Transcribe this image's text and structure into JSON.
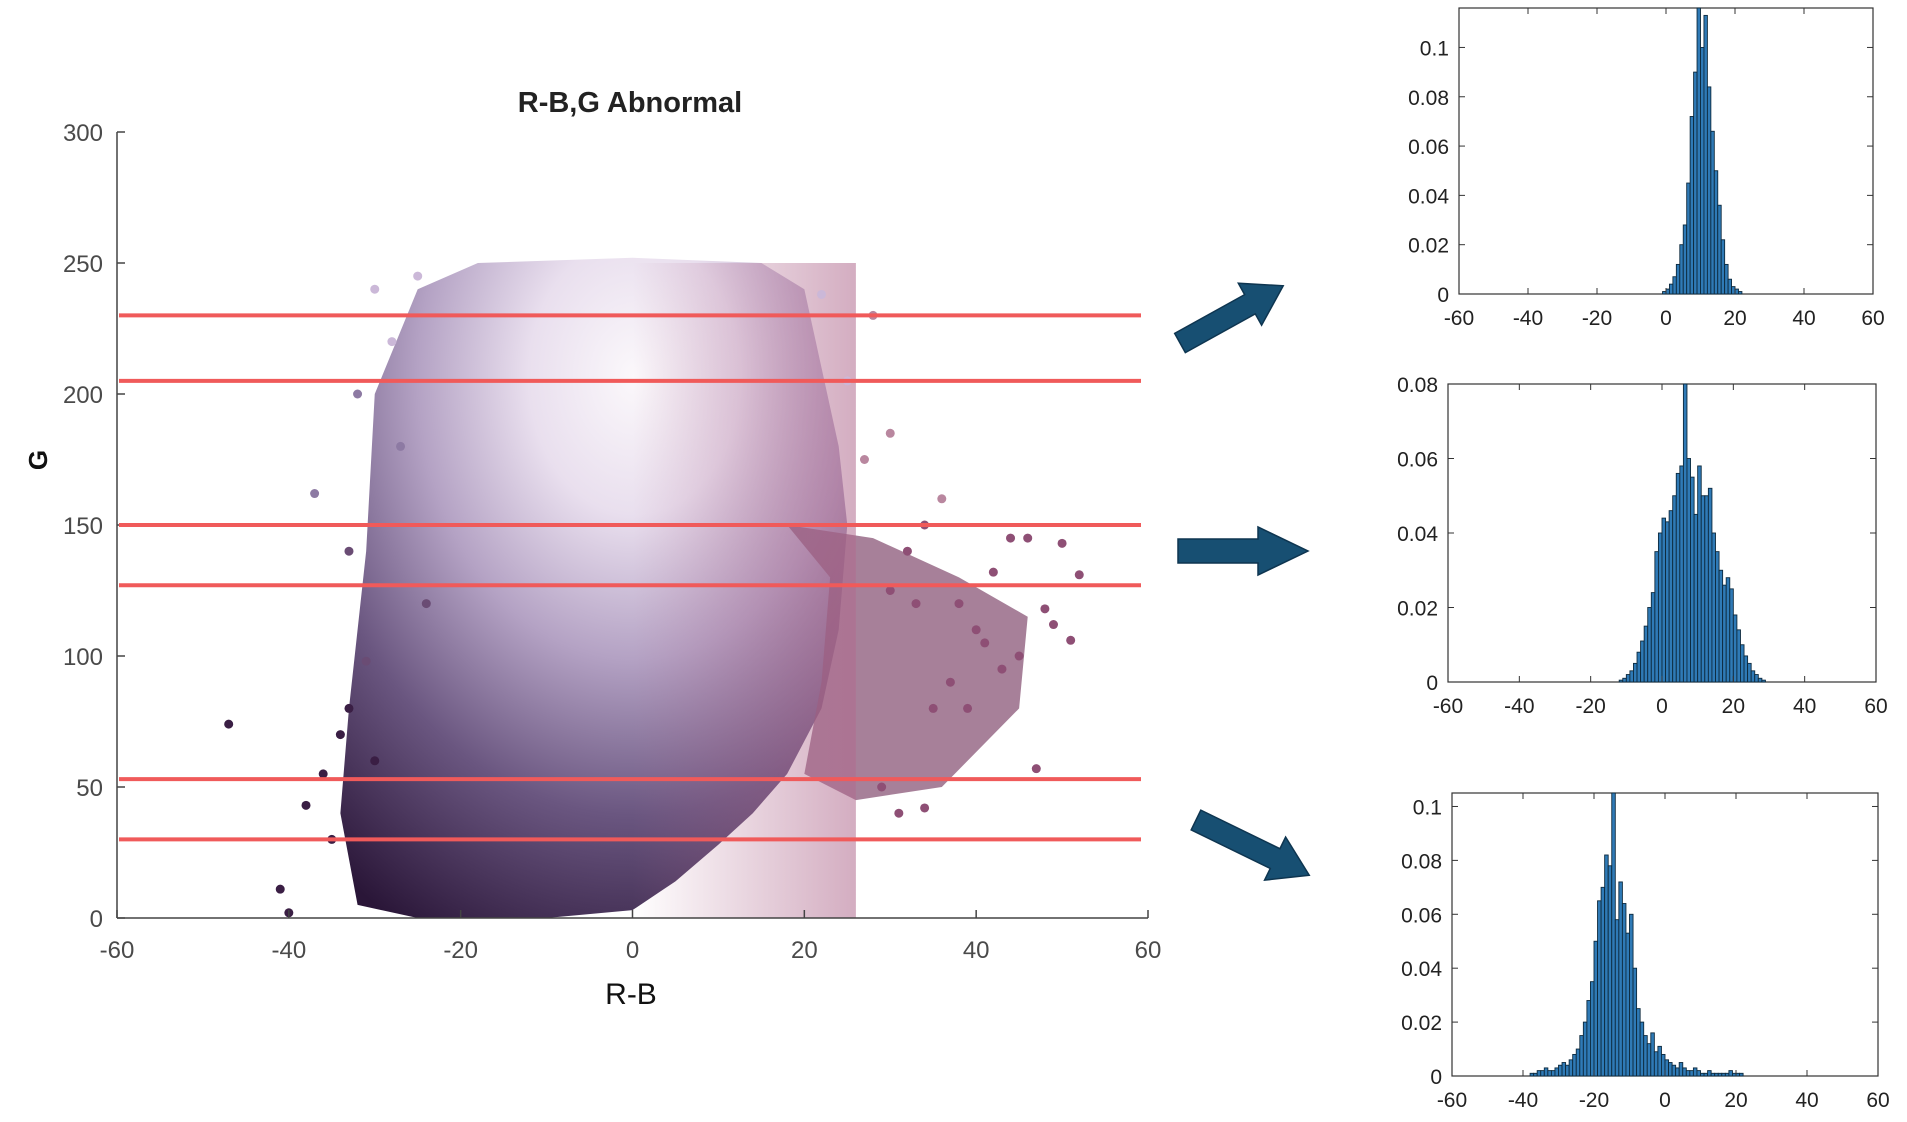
{
  "colors": {
    "band_line": "#f05a5a",
    "arrow": "#174f72",
    "histogram_bar": "#2f7ab6",
    "histogram_edge": "#0d2a3e"
  },
  "chart_data": [
    {
      "type": "scatter",
      "title": "R-B,G Abnormal",
      "xlabel": "R-B",
      "ylabel": "G",
      "xlim": [
        -60,
        60
      ],
      "ylim": [
        0,
        300
      ],
      "xticks": [
        "-60",
        "-40",
        "-20",
        "0",
        "20",
        "40",
        "60"
      ],
      "yticks": [
        "0",
        "50",
        "100",
        "150",
        "200",
        "250",
        "300"
      ],
      "bands": [
        {
          "G_low": 205,
          "G_high": 230
        },
        {
          "G_low": 127,
          "G_high": 150
        },
        {
          "G_low": 30,
          "G_high": 53
        }
      ],
      "points": [
        [
          -47,
          74
        ],
        [
          -41,
          11
        ],
        [
          -40,
          2
        ],
        [
          -38,
          43
        ],
        [
          -37,
          162
        ],
        [
          -36,
          55
        ],
        [
          -35,
          30
        ],
        [
          -34,
          70
        ],
        [
          -33,
          80
        ],
        [
          -33,
          140
        ],
        [
          -32,
          200
        ],
        [
          -31,
          98
        ],
        [
          -30,
          240
        ],
        [
          -30,
          60
        ],
        [
          -28,
          220
        ],
        [
          -27,
          180
        ],
        [
          -25,
          245
        ],
        [
          -24,
          120
        ],
        [
          30,
          125
        ],
        [
          32,
          140
        ],
        [
          34,
          150
        ],
        [
          36,
          160
        ],
        [
          38,
          120
        ],
        [
          40,
          110
        ],
        [
          42,
          132
        ],
        [
          43,
          95
        ],
        [
          44,
          145
        ],
        [
          45,
          100
        ],
        [
          46,
          145
        ],
        [
          47,
          57
        ],
        [
          48,
          118
        ],
        [
          49,
          112
        ],
        [
          50,
          143
        ],
        [
          51,
          106
        ],
        [
          52,
          131
        ],
        [
          25,
          205
        ],
        [
          27,
          175
        ],
        [
          28,
          230
        ],
        [
          30,
          185
        ],
        [
          22,
          238
        ],
        [
          33,
          120
        ],
        [
          35,
          80
        ],
        [
          37,
          90
        ],
        [
          39,
          80
        ],
        [
          41,
          105
        ],
        [
          31,
          40
        ],
        [
          34,
          42
        ],
        [
          29,
          50
        ]
      ]
    },
    {
      "type": "bar",
      "band": "G 205-230",
      "xlim": [
        -60,
        60
      ],
      "ylim": [
        0,
        0.116
      ],
      "xticks": [
        "-60",
        "-40",
        "-20",
        "0",
        "20",
        "40",
        "60"
      ],
      "yticks": [
        "0",
        "0.02",
        "0.04",
        "0.06",
        "0.08",
        "0.1"
      ],
      "bin_start": -1,
      "bin_width": 1,
      "values": [
        0.001,
        0.002,
        0.004,
        0.007,
        0.012,
        0.02,
        0.028,
        0.045,
        0.072,
        0.09,
        0.116,
        0.1,
        0.113,
        0.084,
        0.066,
        0.05,
        0.036,
        0.022,
        0.012,
        0.006,
        0.003,
        0.002,
        0.001
      ]
    },
    {
      "type": "bar",
      "band": "G 127-150",
      "xlim": [
        -60,
        60
      ],
      "ylim": [
        0,
        0.08
      ],
      "xticks": [
        "-60",
        "-40",
        "-20",
        "0",
        "20",
        "40",
        "60"
      ],
      "yticks": [
        "0",
        "0.02",
        "0.04",
        "0.06",
        "0.08"
      ],
      "bin_start": -12,
      "bin_width": 1,
      "values": [
        0.0005,
        0.001,
        0.002,
        0.003,
        0.005,
        0.008,
        0.011,
        0.015,
        0.02,
        0.024,
        0.035,
        0.04,
        0.044,
        0.043,
        0.046,
        0.05,
        0.056,
        0.058,
        0.08,
        0.06,
        0.055,
        0.045,
        0.058,
        0.05,
        0.05,
        0.052,
        0.04,
        0.035,
        0.03,
        0.026,
        0.028,
        0.025,
        0.018,
        0.014,
        0.01,
        0.007,
        0.005,
        0.003,
        0.002,
        0.001,
        0.0005
      ]
    },
    {
      "type": "bar",
      "band": "G 30-53",
      "xlim": [
        -60,
        60
      ],
      "ylim": [
        0,
        0.105
      ],
      "xticks": [
        "-60",
        "-40",
        "-20",
        "0",
        "20",
        "40",
        "60"
      ],
      "yticks": [
        "0",
        "0.02",
        "0.04",
        "0.06",
        "0.08",
        "0.1"
      ],
      "bin_start": -38,
      "bin_width": 1,
      "values": [
        0.001,
        0.001,
        0.002,
        0.002,
        0.003,
        0.002,
        0.002,
        0.003,
        0.004,
        0.005,
        0.004,
        0.006,
        0.008,
        0.01,
        0.015,
        0.02,
        0.028,
        0.035,
        0.05,
        0.065,
        0.07,
        0.082,
        0.078,
        0.105,
        0.058,
        0.072,
        0.064,
        0.053,
        0.06,
        0.04,
        0.025,
        0.02,
        0.015,
        0.012,
        0.016,
        0.009,
        0.011,
        0.008,
        0.006,
        0.005,
        0.004,
        0.003,
        0.005,
        0.003,
        0.002,
        0.002,
        0.003,
        0.002,
        0.001,
        0.001,
        0.002,
        0.001,
        0.001,
        0.001,
        0.001,
        0.001,
        0.002,
        0.001,
        0.001,
        0.001
      ]
    }
  ]
}
